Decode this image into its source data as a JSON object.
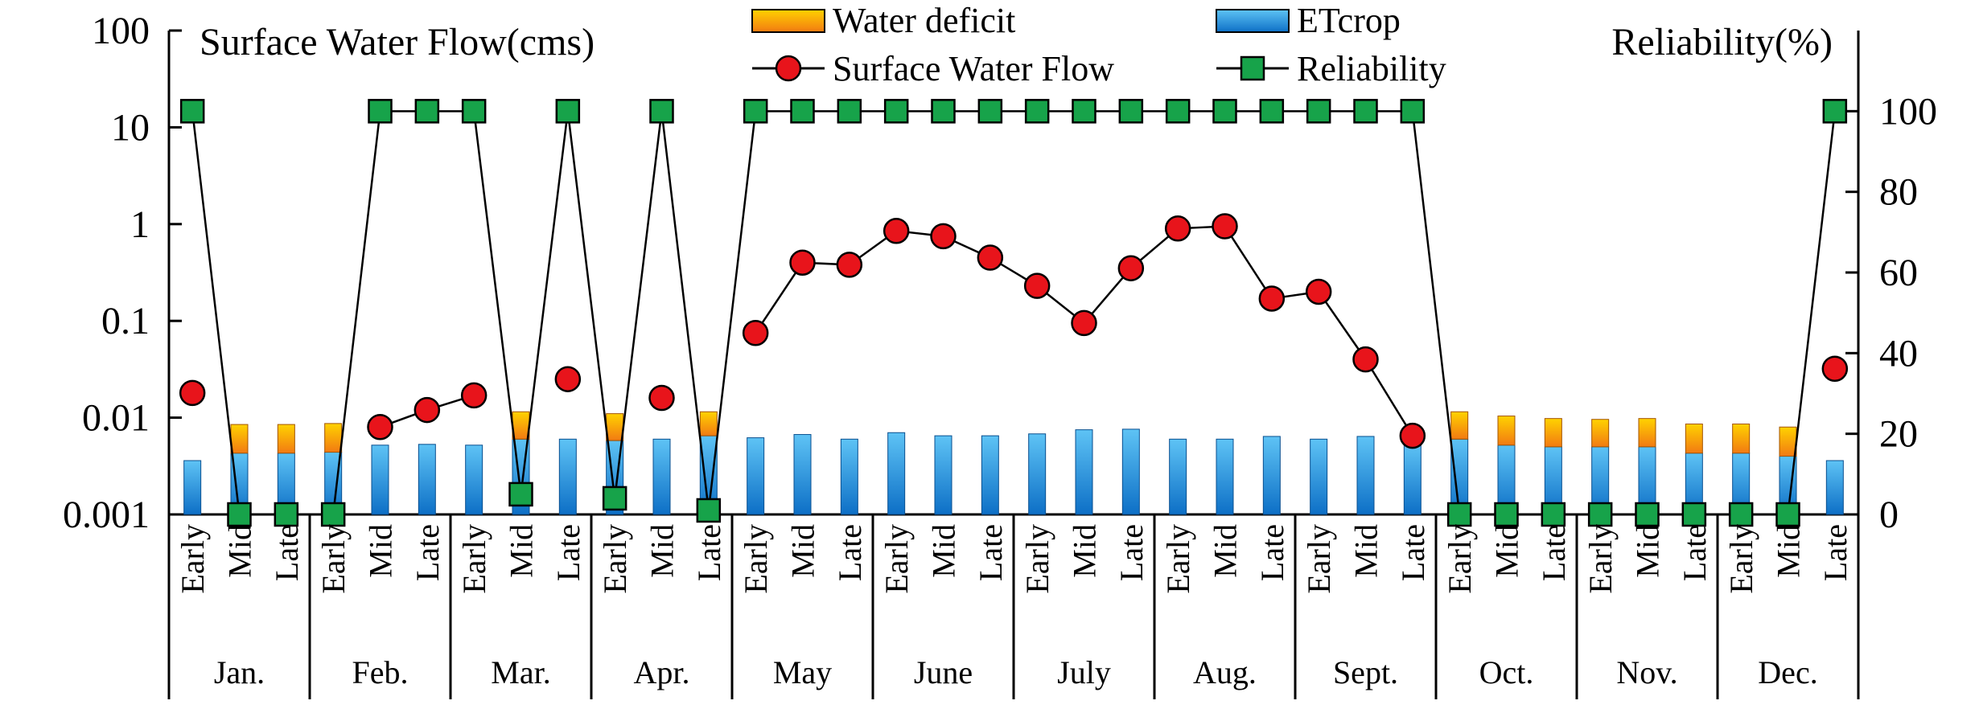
{
  "chart_data": {
    "type": "bar+line",
    "left_axis_title": "Surface Water Flow(cms)",
    "right_axis_title": "Reliability(%)",
    "left_axis": {
      "scale": "log",
      "range": [
        0.001,
        100
      ],
      "ticks": [
        0.001,
        0.01,
        0.1,
        1,
        10,
        100
      ],
      "tick_labels": [
        "0.001",
        "0.01",
        "0.1",
        "1",
        "10",
        "100"
      ]
    },
    "right_axis": {
      "scale": "linear",
      "range": [
        0,
        120
      ],
      "ticks": [
        0,
        20,
        40,
        60,
        80,
        100
      ],
      "tick_labels": [
        "0",
        "20",
        "40",
        "60",
        "80",
        "100"
      ]
    },
    "periods": [
      "Early",
      "Mid",
      "Late",
      "Early",
      "Mid",
      "Late",
      "Early",
      "Mid",
      "Late",
      "Early",
      "Mid",
      "Late",
      "Early",
      "Mid",
      "Late",
      "Early",
      "Mid",
      "Late",
      "Early",
      "Mid",
      "Late",
      "Early",
      "Mid",
      "Late",
      "Early",
      "Mid",
      "Late",
      "Early",
      "Mid",
      "Late",
      "Early",
      "Mid",
      "Late",
      "Early",
      "Mid",
      "Late"
    ],
    "months": [
      "Jan.",
      "Feb.",
      "Mar.",
      "Apr.",
      "May",
      "June",
      "July",
      "Aug.",
      "Sept.",
      "Oct.",
      "Nov.",
      "Dec."
    ],
    "legend": {
      "water_deficit": "Water deficit",
      "etcrop": "ETcrop",
      "surface_water_flow": "Surface Water Flow",
      "reliability": "Reliability"
    },
    "series": [
      {
        "name": "ETcrop",
        "type": "bar",
        "axis": "left",
        "values": [
          0.0036,
          0.0043,
          0.0043,
          0.0044,
          0.0052,
          0.0053,
          0.0052,
          0.006,
          0.006,
          0.0058,
          0.006,
          0.0065,
          0.0062,
          0.0067,
          0.006,
          0.007,
          0.0065,
          0.0065,
          0.0068,
          0.0075,
          0.0076,
          0.006,
          0.006,
          0.0064,
          0.006,
          0.0064,
          0.0053,
          0.006,
          0.0052,
          0.005,
          0.005,
          0.005,
          0.0043,
          0.0043,
          0.004,
          0.0036
        ]
      },
      {
        "name": "Water deficit",
        "type": "stacked-bar",
        "axis": "left",
        "values": [
          0,
          0.0042,
          0.0042,
          0.0043,
          0,
          0,
          0,
          0.0055,
          0,
          0.0052,
          0,
          0.005,
          0,
          0,
          0,
          0,
          0,
          0,
          0,
          0,
          0,
          0,
          0,
          0,
          0,
          0,
          0,
          0.0055,
          0.0052,
          0.0048,
          0.0046,
          0.0048,
          0.0043,
          0.0043,
          0.004,
          0
        ]
      },
      {
        "name": "Surface Water Flow",
        "type": "line",
        "axis": "left",
        "values": [
          0.018,
          null,
          null,
          null,
          0.008,
          0.012,
          0.017,
          null,
          0.025,
          null,
          0.016,
          null,
          0.075,
          0.4,
          0.38,
          0.85,
          0.75,
          0.45,
          0.23,
          0.095,
          0.35,
          0.9,
          0.95,
          0.17,
          0.2,
          0.04,
          0.0065,
          null,
          null,
          null,
          null,
          null,
          null,
          null,
          null,
          0.032
        ]
      },
      {
        "name": "Reliability",
        "type": "line",
        "axis": "right",
        "values": [
          100,
          0,
          0,
          0,
          100,
          100,
          100,
          5,
          100,
          4,
          100,
          1,
          100,
          100,
          100,
          100,
          100,
          100,
          100,
          100,
          100,
          100,
          100,
          100,
          100,
          100,
          100,
          0,
          0,
          0,
          0,
          0,
          0,
          0,
          0,
          100
        ]
      }
    ],
    "colors": {
      "etcrop": "#1E90E0",
      "water_deficit": "#F59A1A",
      "flow_marker": "#E8141B",
      "reliability_marker": "#17A34A",
      "line": "#000000"
    }
  }
}
